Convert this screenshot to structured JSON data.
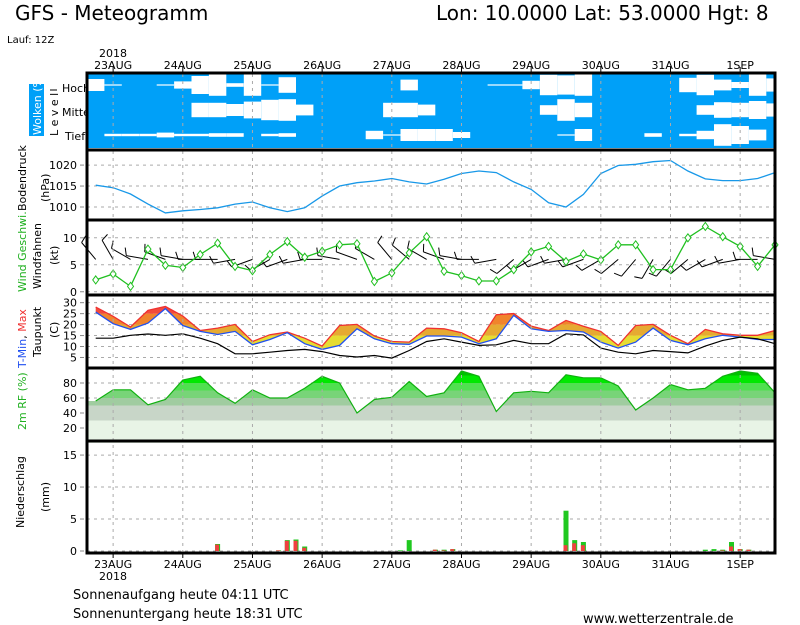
{
  "header": {
    "title": "GFS - Meteogramm",
    "location": "Lon: 10.0000 Lat: 53.0000 Hgt: 8",
    "run": "Lauf: 12Z"
  },
  "footer": {
    "sunrise": "Sonnenaufgang heute 04:11 UTC",
    "sunset": "Sonnenuntergang heute 18:31 UTC",
    "site": "www.wetterzentrale.de"
  },
  "labels": {
    "clouds": "Wolken (%)",
    "level": "L e v e l",
    "hoch": "Hoch",
    "mittel": "Mittel",
    "tief": "Tief",
    "pressure": "Bodendruck",
    "pressure_unit": "(hPa)",
    "wind": "Wind Geschwi.",
    "windbarbs": "Windfahnen",
    "wind_unit": "(kt)",
    "tmin": "T-Min",
    "comma": ", ",
    "tmax": "Max",
    "dewpoint": "Taupunkt",
    "temp_unit": "(C)",
    "rh": "2m RF (%)",
    "precip": "Niederschlag",
    "precip_unit": "(mm)",
    "year": "2018"
  },
  "colors": {
    "cloud": "#00a0f8",
    "pressure": "#1898e8",
    "wind": "#20c020",
    "tmax": "#f03030",
    "tmin": "#2050f0",
    "dewpoint": "#000000",
    "precip_total": "#20c820",
    "precip_conv": "#f04040"
  },
  "chart_data": {
    "type": "meteogram",
    "xlim": [
      "2018-08-22T15:00Z",
      "2018-09-01T12:00Z"
    ],
    "x_ticks": [
      {
        "time": "2018-08-23T00:00Z",
        "label": "23AUG"
      },
      {
        "time": "2018-08-24T00:00Z",
        "label": "24AUG"
      },
      {
        "time": "2018-08-25T00:00Z",
        "label": "25AUG"
      },
      {
        "time": "2018-08-26T00:00Z",
        "label": "26AUG"
      },
      {
        "time": "2018-08-27T00:00Z",
        "label": "27AUG"
      },
      {
        "time": "2018-08-28T00:00Z",
        "label": "28AUG"
      },
      {
        "time": "2018-08-29T00:00Z",
        "label": "29AUG"
      },
      {
        "time": "2018-08-30T00:00Z",
        "label": "30AUG"
      },
      {
        "time": "2018-08-31T00:00Z",
        "label": "31AUG"
      },
      {
        "time": "2018-09-01T00:00Z",
        "label": "1SEP"
      }
    ],
    "grid": true,
    "times": [
      "2018-08-22T18:00Z",
      "2018-08-23T00:00Z",
      "2018-08-23T06:00Z",
      "2018-08-23T12:00Z",
      "2018-08-23T18:00Z",
      "2018-08-24T00:00Z",
      "2018-08-24T06:00Z",
      "2018-08-24T12:00Z",
      "2018-08-24T18:00Z",
      "2018-08-25T00:00Z",
      "2018-08-25T06:00Z",
      "2018-08-25T12:00Z",
      "2018-08-25T18:00Z",
      "2018-08-26T00:00Z",
      "2018-08-26T06:00Z",
      "2018-08-26T12:00Z",
      "2018-08-26T18:00Z",
      "2018-08-27T00:00Z",
      "2018-08-27T06:00Z",
      "2018-08-27T12:00Z",
      "2018-08-27T18:00Z",
      "2018-08-28T00:00Z",
      "2018-08-28T06:00Z",
      "2018-08-28T12:00Z",
      "2018-08-28T18:00Z",
      "2018-08-29T00:00Z",
      "2018-08-29T06:00Z",
      "2018-08-29T12:00Z",
      "2018-08-29T18:00Z",
      "2018-08-30T00:00Z",
      "2018-08-30T06:00Z",
      "2018-08-30T12:00Z",
      "2018-08-30T18:00Z",
      "2018-08-31T00:00Z",
      "2018-08-31T06:00Z",
      "2018-08-31T12:00Z",
      "2018-08-31T18:00Z",
      "2018-09-01T00:00Z",
      "2018-09-01T06:00Z",
      "2018-09-01T12:00Z"
    ],
    "clouds": {
      "unit": "%",
      "hoch": [
        50,
        95,
        100,
        100,
        95,
        70,
        25,
        10,
        85,
        10,
        95,
        35,
        100,
        100,
        100,
        100,
        100,
        100,
        55,
        100,
        100,
        100,
        100,
        95,
        95,
        65,
        15,
        20,
        10,
        100,
        100,
        100,
        100,
        100,
        40,
        15,
        55,
        75,
        10,
        45
      ],
      "mittel": [
        100,
        100,
        100,
        100,
        100,
        100,
        40,
        40,
        50,
        30,
        15,
        10,
        55,
        100,
        100,
        100,
        100,
        40,
        40,
        55,
        100,
        100,
        100,
        100,
        100,
        100,
        60,
        10,
        40,
        100,
        100,
        100,
        100,
        100,
        100,
        60,
        35,
        40,
        25,
        45
      ],
      "tief": [
        100,
        90,
        90,
        90,
        80,
        90,
        90,
        85,
        85,
        100,
        90,
        85,
        100,
        100,
        100,
        100,
        65,
        95,
        50,
        50,
        50,
        75,
        100,
        100,
        100,
        100,
        100,
        95,
        50,
        100,
        100,
        100,
        85,
        100,
        90,
        65,
        10,
        25,
        55,
        100
      ]
    },
    "pressure": {
      "unit": "hPa",
      "ylim": [
        1006.9,
        1023.6
      ],
      "ticks": [
        1010,
        1015,
        1020
      ],
      "values": [
        1015.2,
        1014.6,
        1013.1,
        1010.7,
        1008.6,
        1009.1,
        1009.4,
        1009.8,
        1010.7,
        1011.2,
        1009.8,
        1008.9,
        1009.8,
        1012.6,
        1015.0,
        1015.8,
        1016.2,
        1016.8,
        1016.0,
        1015.5,
        1016.6,
        1018.0,
        1018.6,
        1018.2,
        1016.0,
        1014.2,
        1011.0,
        1010.0,
        1013.0,
        1018.0,
        1019.9,
        1020.2,
        1020.8,
        1021.1,
        1018.6,
        1016.7,
        1016.3,
        1016.3,
        1016.8,
        1018.2
      ]
    },
    "wind": {
      "unit": "kt",
      "ylim": [
        -0.6,
        13.3
      ],
      "ticks": [
        0,
        5,
        10
      ],
      "speed": [
        2.2,
        3.3,
        1.0,
        7.9,
        4.9,
        4.5,
        6.9,
        9.0,
        4.7,
        3.9,
        6.9,
        9.3,
        6.4,
        7.5,
        8.7,
        8.9,
        1.9,
        3.5,
        7.2,
        10.2,
        3.8,
        3.0,
        2.0,
        2.0,
        4.1,
        7.4,
        8.4,
        5.6,
        7.0,
        5.9,
        8.7,
        8.7,
        4.1,
        4.1,
        10.0,
        12.1,
        10.2,
        8.4,
        4.7,
        8.7
      ],
      "direction": [
        320,
        330,
        300,
        280,
        290,
        280,
        270,
        270,
        260,
        250,
        240,
        250,
        260,
        270,
        280,
        290,
        300,
        320,
        310,
        300,
        290,
        280,
        270,
        260,
        230,
        240,
        250,
        260,
        250,
        240,
        230,
        220,
        210,
        220,
        230,
        240,
        250,
        260,
        270,
        280
      ]
    },
    "temperature": {
      "unit": "C",
      "ylim": [
        0.2,
        33.5
      ],
      "ticks": [
        5,
        10,
        15,
        20,
        25,
        30
      ],
      "tmax": [
        28.0,
        23.8,
        18.9,
        26.5,
        28.3,
        23.9,
        17.3,
        18.4,
        20.1,
        12.3,
        15.4,
        16.6,
        13.8,
        10.2,
        19.6,
        20.1,
        14.8,
        12.3,
        12.0,
        18.4,
        18.1,
        16.3,
        12.3,
        24.5,
        25.0,
        19.3,
        17.3,
        21.9,
        19.2,
        16.9,
        10.5,
        19.6,
        20.1,
        15.1,
        11.3,
        17.8,
        15.8,
        15.1,
        15.1,
        17.3
      ],
      "tmin": [
        25.7,
        20.4,
        17.8,
        20.7,
        27.3,
        19.6,
        16.9,
        15.5,
        16.9,
        10.8,
        13.2,
        16.3,
        11.3,
        8.7,
        10.5,
        18.1,
        13.5,
        11.3,
        11.0,
        14.8,
        14.8,
        14.3,
        11.3,
        13.5,
        24.2,
        18.1,
        16.9,
        17.3,
        16.6,
        12.0,
        9.3,
        12.0,
        18.4,
        12.8,
        10.8,
        13.5,
        15.1,
        14.3,
        13.2,
        13.2
      ],
      "dewpoint": [
        13.8,
        13.8,
        15.1,
        15.7,
        15.1,
        15.8,
        13.8,
        11.3,
        6.7,
        6.7,
        7.4,
        8.2,
        8.7,
        7.7,
        5.9,
        5.2,
        5.9,
        4.7,
        8.2,
        12.3,
        13.5,
        12.0,
        10.5,
        10.8,
        12.8,
        11.3,
        11.3,
        15.8,
        15.3,
        9.3,
        7.4,
        6.7,
        8.2,
        7.7,
        7.1,
        10.2,
        12.8,
        14.3,
        13.5,
        11.3
      ]
    },
    "rh": {
      "unit": "%",
      "ylim": [
        0,
        100
      ],
      "ticks": [
        20,
        40,
        60,
        80
      ],
      "values": [
        56,
        71,
        71,
        51,
        58,
        84,
        89,
        67,
        53,
        71,
        60,
        60,
        73,
        89,
        80,
        40,
        58,
        61,
        82,
        62,
        67,
        96,
        89,
        42,
        67,
        69,
        67,
        91,
        87,
        87,
        76,
        44,
        60,
        78,
        71,
        73,
        89,
        96,
        93,
        67
      ]
    },
    "precip": {
      "unit": "mm",
      "ylim": [
        0,
        17.2
      ],
      "ticks": [
        0,
        5,
        10,
        15
      ],
      "bars": [
        {
          "time": "2018-08-24T12:00Z",
          "total": 1.1,
          "conv": 1.0
        },
        {
          "time": "2018-08-25T09:00Z",
          "total": 0.1,
          "conv": 0.1
        },
        {
          "time": "2018-08-25T12:00Z",
          "total": 1.7,
          "conv": 1.6
        },
        {
          "time": "2018-08-25T15:00Z",
          "total": 1.8,
          "conv": 1.6
        },
        {
          "time": "2018-08-25T18:00Z",
          "total": 0.7,
          "conv": 0.5
        },
        {
          "time": "2018-08-27T03:00Z",
          "total": 0.1,
          "conv": 0.0
        },
        {
          "time": "2018-08-27T06:00Z",
          "total": 1.7,
          "conv": 0.0
        },
        {
          "time": "2018-08-27T15:00Z",
          "total": 0.2,
          "conv": 0.2
        },
        {
          "time": "2018-08-27T18:00Z",
          "total": 0.2,
          "conv": 0.1
        },
        {
          "time": "2018-08-27T21:00Z",
          "total": 0.3,
          "conv": 0.3
        },
        {
          "time": "2018-08-29T12:00Z",
          "total": 6.3,
          "conv": 0.9
        },
        {
          "time": "2018-08-29T15:00Z",
          "total": 1.7,
          "conv": 1.2
        },
        {
          "time": "2018-08-29T18:00Z",
          "total": 1.4,
          "conv": 0.9
        },
        {
          "time": "2018-08-31T12:00Z",
          "total": 0.2,
          "conv": 0.0
        },
        {
          "time": "2018-08-31T15:00Z",
          "total": 0.3,
          "conv": 0.0
        },
        {
          "time": "2018-08-31T18:00Z",
          "total": 0.2,
          "conv": 0.1
        },
        {
          "time": "2018-08-31T21:00Z",
          "total": 1.4,
          "conv": 0.7
        },
        {
          "time": "2018-09-01T00:00Z",
          "total": 0.3,
          "conv": 0.3
        },
        {
          "time": "2018-09-01T03:00Z",
          "total": 0.2,
          "conv": 0.2
        }
      ]
    }
  }
}
